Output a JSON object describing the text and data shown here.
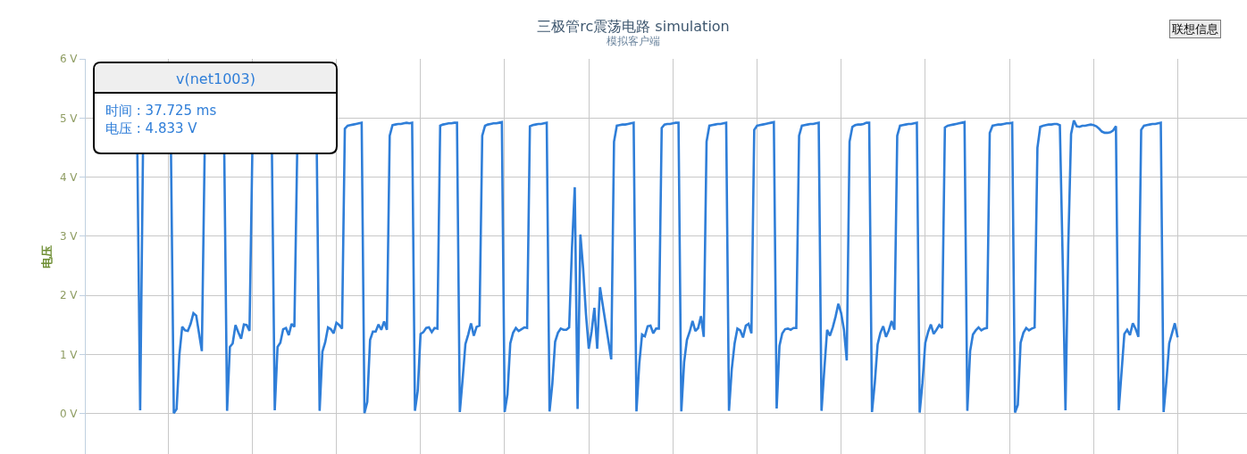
{
  "chart_data": {
    "type": "line",
    "title": "三极管rc震荡电路 simulation",
    "subtitle": "模拟客户端",
    "ylabel": "电压",
    "annotations": [
      "时间 : 37.725 ms",
      "电压 : 4.833 V",
      "联想信息"
    ],
    "categories": [
      null,
      null,
      null,
      null,
      null,
      null,
      null,
      null,
      null,
      null,
      null,
      null,
      null,
      null,
      null,
      null,
      null,
      null,
      null,
      null,
      null,
      null,
      null,
      null,
      null,
      null,
      null,
      null,
      null,
      null,
      null,
      null,
      null,
      null,
      null,
      null,
      null,
      null,
      null,
      null,
      null,
      null,
      null,
      null,
      null,
      null,
      null,
      null,
      null,
      null,
      null,
      null,
      null,
      null,
      null,
      null,
      null,
      null,
      null,
      null,
      null,
      null,
      null,
      null,
      null,
      null,
      null,
      null,
      null,
      null,
      null,
      null,
      null,
      null,
      null,
      null,
      null,
      null,
      null,
      null,
      null,
      null,
      null,
      null,
      null,
      null,
      null,
      null,
      null,
      null,
      null,
      null,
      null,
      null,
      null,
      null,
      null,
      null,
      null,
      null,
      null,
      null,
      null,
      null,
      null,
      null,
      null,
      null,
      null,
      null,
      null,
      null,
      null,
      null,
      null,
      null,
      null,
      null,
      null,
      null,
      null,
      null,
      null,
      null,
      null,
      null,
      null,
      null,
      null,
      null,
      null,
      null,
      null,
      null,
      null,
      null,
      null,
      null,
      null,
      null,
      null,
      null,
      null,
      null,
      null,
      null,
      null,
      null,
      null,
      null,
      null,
      null,
      null,
      null,
      null,
      null,
      null,
      null,
      null,
      null,
      null,
      null,
      null,
      null,
      null,
      null,
      null,
      null,
      null,
      null,
      null,
      null,
      null,
      null,
      null,
      null,
      null,
      null,
      null,
      null,
      null,
      null,
      null,
      null,
      null,
      null,
      null,
      null,
      null,
      null,
      null,
      null,
      null,
      null,
      null,
      null,
      null,
      null,
      null,
      null,
      null,
      null,
      null,
      null,
      null,
      null,
      null,
      null,
      null,
      null,
      null,
      null,
      null,
      null,
      null,
      null,
      null,
      null,
      null,
      null,
      null,
      null,
      null,
      null,
      null,
      null,
      null,
      null,
      null,
      null,
      null,
      null,
      null,
      null,
      null,
      null,
      null,
      null,
      null,
      null,
      null,
      null,
      null,
      null,
      null,
      null,
      null,
      null,
      null,
      null,
      null,
      null,
      null,
      null,
      null,
      null,
      null,
      null,
      null,
      null,
      null,
      null,
      null,
      null,
      null,
      null,
      null,
      null,
      null,
      null,
      null,
      null,
      null,
      null,
      null,
      null,
      null,
      null,
      null,
      null,
      null,
      null,
      null,
      null,
      null,
      null,
      null,
      null,
      null,
      null,
      null,
      null,
      null,
      null,
      null,
      null,
      null,
      null,
      null,
      null,
      null,
      null,
      null,
      null,
      null,
      null,
      null,
      null,
      null,
      null,
      null,
      null,
      null,
      null,
      null,
      null,
      null,
      null,
      null,
      null,
      null,
      null,
      null,
      null,
      null,
      null,
      null,
      null,
      null,
      null,
      null,
      null,
      null,
      null,
      null,
      null,
      null,
      null,
      null,
      null,
      null,
      null,
      null,
      null,
      null,
      null,
      null,
      null,
      null,
      null,
      null,
      null,
      null,
      null,
      null,
      null,
      null,
      null,
      null,
      null,
      null,
      null,
      null,
      null,
      null,
      null,
      null,
      null,
      null,
      null,
      null,
      null
    ],
    "series": [
      {
        "name": "v(net1003)",
        "color": "#2f7ed8",
        "values": [
          4.41,
          0.06,
          4.41,
          null,
          null,
          null,
          null,
          null,
          null,
          null,
          null,
          null,
          4.41,
          0.01,
          0.08,
          1.0,
          1.47,
          1.41,
          1.4,
          1.52,
          1.7,
          1.66,
          1.36,
          1.06,
          4.41,
          null,
          null,
          null,
          null,
          null,
          null,
          4.41,
          0.05,
          1.13,
          1.19,
          1.5,
          1.38,
          1.27,
          1.51,
          1.5,
          1.4,
          4.41,
          null,
          null,
          null,
          null,
          null,
          null,
          4.41,
          0.06,
          1.13,
          1.2,
          1.43,
          1.45,
          1.33,
          1.52,
          1.47,
          4.41,
          null,
          null,
          null,
          null,
          null,
          null,
          4.41,
          0.05,
          1.05,
          1.21,
          1.46,
          1.43,
          1.36,
          1.54,
          1.5,
          1.44,
          4.82,
          4.87,
          4.88,
          4.89,
          4.9,
          4.91,
          4.92,
          0.01,
          0.2,
          1.25,
          1.39,
          1.39,
          1.51,
          1.42,
          1.56,
          1.42,
          4.7,
          4.88,
          4.89,
          4.9,
          4.9,
          4.91,
          4.92,
          4.91,
          4.92,
          0.05,
          0.39,
          1.35,
          1.38,
          1.45,
          1.46,
          1.38,
          1.45,
          1.44,
          4.87,
          4.89,
          4.9,
          4.91,
          4.91,
          4.92,
          4.92,
          0.03,
          0.58,
          1.18,
          1.34,
          1.53,
          1.32,
          1.47,
          1.49,
          4.7,
          4.87,
          4.89,
          4.9,
          4.91,
          4.91,
          4.92,
          4.93,
          0.03,
          0.33,
          1.19,
          1.37,
          1.45,
          1.4,
          1.43,
          1.46,
          1.45,
          4.86,
          4.88,
          4.89,
          4.9,
          4.9,
          4.91,
          4.92,
          0.04,
          0.51,
          1.22,
          1.37,
          1.44,
          1.42,
          1.42,
          1.46,
          2.8,
          3.83,
          0.08,
          3.03,
          2.45,
          1.68,
          1.1,
          1.39,
          1.79,
          1.1,
          2.14,
          1.83,
          1.53,
          1.23,
          0.92,
          4.6,
          4.87,
          4.88,
          4.89,
          4.89,
          4.9,
          4.91,
          4.92,
          0.04,
          0.84,
          1.34,
          1.31,
          1.48,
          1.49,
          1.36,
          1.44,
          1.44,
          4.833,
          4.89,
          4.9,
          4.9,
          4.91,
          4.92,
          4.92,
          0.04,
          0.87,
          1.25,
          1.39,
          1.57,
          1.4,
          1.45,
          1.65,
          1.3,
          4.6,
          4.87,
          4.88,
          4.89,
          4.9,
          4.9,
          4.91,
          4.92,
          0.05,
          0.76,
          1.19,
          1.44,
          1.41,
          1.29,
          1.49,
          1.52,
          1.36,
          4.8,
          4.87,
          4.88,
          4.89,
          4.9,
          4.91,
          4.92,
          4.93,
          0.09,
          1.15,
          1.36,
          1.43,
          1.44,
          1.42,
          1.45,
          1.45,
          4.7,
          4.87,
          4.88,
          4.89,
          4.9,
          4.9,
          4.91,
          4.92,
          0.05,
          0.75,
          1.42,
          1.32,
          1.46,
          1.64,
          1.86,
          1.7,
          1.42,
          0.9,
          4.6,
          4.85,
          4.88,
          4.89,
          4.89,
          4.9,
          4.92,
          4.92,
          0.03,
          0.52,
          1.17,
          1.37,
          1.48,
          1.3,
          1.41,
          1.57,
          1.42,
          4.7,
          4.87,
          4.88,
          4.89,
          4.9,
          4.9,
          4.91,
          4.92,
          0.02,
          0.52,
          1.2,
          1.38,
          1.51,
          1.35,
          1.42,
          1.5,
          1.45,
          4.84,
          4.87,
          4.88,
          4.89,
          4.9,
          4.91,
          4.92,
          4.93,
          0.05,
          1.06,
          1.34,
          1.41,
          1.46,
          1.41,
          1.44,
          1.45,
          4.75,
          4.87,
          4.88,
          4.89,
          4.89,
          4.9,
          4.91,
          4.91,
          4.92,
          0.02,
          0.15,
          1.2,
          1.37,
          1.45,
          1.41,
          1.44,
          1.46,
          4.5,
          4.85,
          4.87,
          4.88,
          4.89,
          4.89,
          4.9,
          4.9,
          4.88,
          2.62,
          0.06,
          2.84,
          4.73,
          4.96,
          4.86,
          4.85,
          4.87,
          4.87,
          4.88,
          4.89,
          4.88,
          4.86,
          4.82,
          4.77,
          4.75,
          4.75,
          4.76,
          4.79,
          4.86,
          0.06,
          0.7,
          1.35,
          1.42,
          1.33,
          1.53,
          1.44,
          1.3,
          4.8,
          4.87,
          4.88,
          4.89,
          4.9,
          4.9,
          4.91,
          4.92,
          0.03,
          0.55,
          1.19,
          1.36,
          1.53,
          1.29
        ]
      }
    ],
    "ylim": [
      -0.68,
      6
    ],
    "yticks": [
      {
        "value": 0,
        "label": "0 V"
      },
      {
        "value": 1,
        "label": "1 V"
      },
      {
        "value": 2,
        "label": "2 V"
      },
      {
        "value": 3,
        "label": "3 V"
      },
      {
        "value": 4,
        "label": "4 V"
      },
      {
        "value": 5,
        "label": "5 V"
      },
      {
        "value": 6,
        "label": "6 V"
      }
    ],
    "grid": true,
    "tick_labels": "y"
  }
}
